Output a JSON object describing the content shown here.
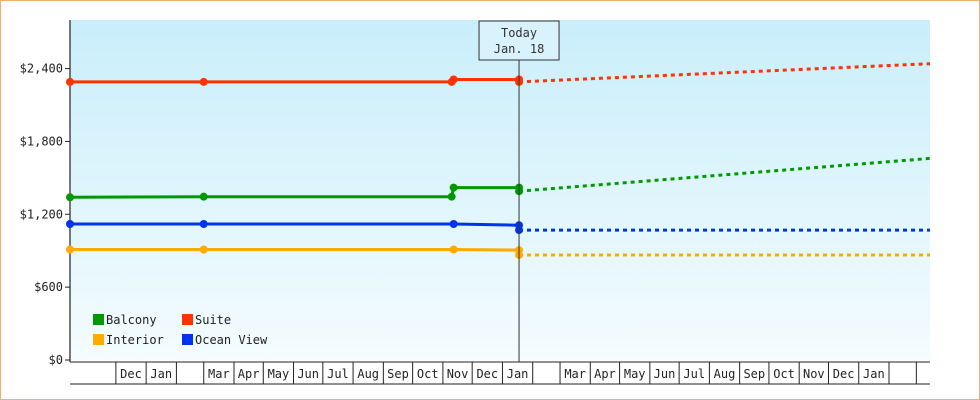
{
  "chart_data": {
    "type": "line",
    "y_ticks": [
      {
        "value": 0,
        "label": "$0"
      },
      {
        "value": 600,
        "label": "$600"
      },
      {
        "value": 1200,
        "label": "$1,200"
      },
      {
        "value": 1800,
        "label": "$1,800"
      },
      {
        "value": 2400,
        "label": "$2,400"
      }
    ],
    "ylim": [
      0,
      2800
    ],
    "x_range": [
      "2016-10-15",
      "2019-03-15"
    ],
    "x_month_labels": [
      {
        "month": "2016-12",
        "label": "Dec"
      },
      {
        "month": "2017-01",
        "label": "Jan"
      },
      {
        "month": "2017-02",
        "label": ""
      },
      {
        "month": "2017-03",
        "label": "Mar"
      },
      {
        "month": "2017-04",
        "label": "Apr"
      },
      {
        "month": "2017-05",
        "label": "May"
      },
      {
        "month": "2017-06",
        "label": "Jun"
      },
      {
        "month": "2017-07",
        "label": "Jul"
      },
      {
        "month": "2017-08",
        "label": "Aug"
      },
      {
        "month": "2017-09",
        "label": "Sep"
      },
      {
        "month": "2017-10",
        "label": "Oct"
      },
      {
        "month": "2017-11",
        "label": "Nov"
      },
      {
        "month": "2017-12",
        "label": "Dec"
      },
      {
        "month": "2018-01",
        "label": "Jan"
      },
      {
        "month": "2018-02",
        "label": ""
      },
      {
        "month": "2018-03",
        "label": "Mar"
      },
      {
        "month": "2018-04",
        "label": "Apr"
      },
      {
        "month": "2018-05",
        "label": "May"
      },
      {
        "month": "2018-06",
        "label": "Jun"
      },
      {
        "month": "2018-07",
        "label": "Jul"
      },
      {
        "month": "2018-08",
        "label": "Aug"
      },
      {
        "month": "2018-09",
        "label": "Sep"
      },
      {
        "month": "2018-10",
        "label": "Oct"
      },
      {
        "month": "2018-11",
        "label": "Nov"
      },
      {
        "month": "2018-12",
        "label": "Dec"
      },
      {
        "month": "2019-01",
        "label": "Jan"
      },
      {
        "month": "2019-02",
        "label": ""
      }
    ],
    "today": {
      "date": "2018-01-18",
      "label_line1": "Today",
      "label_line2": "Jan. 18"
    },
    "series": [
      {
        "name": "Suite",
        "color": "#ff3300",
        "historical": [
          [
            "2016-10-15",
            2290
          ],
          [
            "2017-03-01",
            2290
          ],
          [
            "2017-11-10",
            2290
          ],
          [
            "2017-11-12",
            2310
          ],
          [
            "2018-01-18",
            2310
          ]
        ],
        "forecast": [
          [
            "2018-01-18",
            2290
          ],
          [
            "2019-03-15",
            2440
          ]
        ]
      },
      {
        "name": "Balcony",
        "color": "#009900",
        "historical": [
          [
            "2016-10-15",
            1340
          ],
          [
            "2017-03-01",
            1345
          ],
          [
            "2017-11-10",
            1345
          ],
          [
            "2017-11-12",
            1420
          ],
          [
            "2018-01-18",
            1420
          ]
        ],
        "forecast": [
          [
            "2018-01-18",
            1390
          ],
          [
            "2019-03-15",
            1660
          ]
        ]
      },
      {
        "name": "Ocean View",
        "color": "#0033ee",
        "historical": [
          [
            "2016-10-15",
            1120
          ],
          [
            "2017-03-01",
            1120
          ],
          [
            "2017-11-12",
            1120
          ],
          [
            "2018-01-18",
            1110
          ]
        ],
        "forecast": [
          [
            "2018-01-18",
            1070
          ],
          [
            "2019-03-15",
            1070
          ]
        ]
      },
      {
        "name": "Interior",
        "color": "#ffaa00",
        "historical": [
          [
            "2016-10-15",
            910
          ],
          [
            "2017-03-01",
            910
          ],
          [
            "2017-11-12",
            910
          ],
          [
            "2018-01-18",
            905
          ]
        ],
        "forecast": [
          [
            "2018-01-18",
            865
          ],
          [
            "2019-03-15",
            865
          ]
        ]
      }
    ],
    "legend": [
      {
        "name": "Balcony",
        "color": "#009900"
      },
      {
        "name": "Suite",
        "color": "#ff3300"
      },
      {
        "name": "Interior",
        "color": "#ffaa00"
      },
      {
        "name": "Ocean View",
        "color": "#0033ee"
      }
    ],
    "legend_position": "bottom-left",
    "grid": false
  }
}
